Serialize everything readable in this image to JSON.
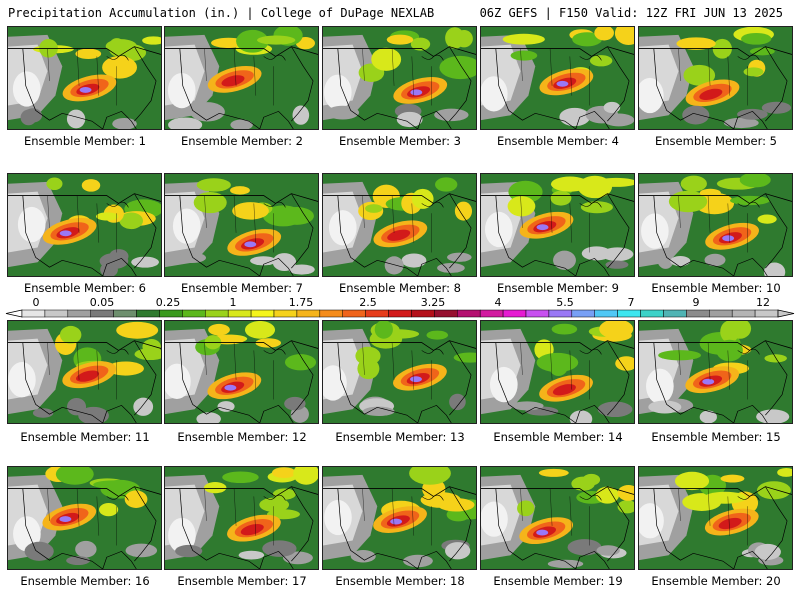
{
  "header": {
    "title": "Precipitation Accumulation (in.) | College of DuPage NEXLAB",
    "valid": "06Z GEFS | F150 Valid: 12Z FRI JUN 13 2025"
  },
  "caption_prefix": "Ensemble Member:",
  "members": [
    {
      "label": "Ensemble Member: 1"
    },
    {
      "label": "Ensemble Member: 2"
    },
    {
      "label": "Ensemble Member: 3"
    },
    {
      "label": "Ensemble Member: 4"
    },
    {
      "label": "Ensemble Member: 5"
    },
    {
      "label": "Ensemble Member: 6"
    },
    {
      "label": "Ensemble Member: 7"
    },
    {
      "label": "Ensemble Member: 8"
    },
    {
      "label": "Ensemble Member: 9"
    },
    {
      "label": "Ensemble Member: 10"
    },
    {
      "label": "Ensemble Member: 11"
    },
    {
      "label": "Ensemble Member: 12"
    },
    {
      "label": "Ensemble Member: 13"
    },
    {
      "label": "Ensemble Member: 14"
    },
    {
      "label": "Ensemble Member: 15"
    },
    {
      "label": "Ensemble Member: 16"
    },
    {
      "label": "Ensemble Member: 17"
    },
    {
      "label": "Ensemble Member: 18"
    },
    {
      "label": "Ensemble Member: 19"
    },
    {
      "label": "Ensemble Member: 20"
    }
  ],
  "colorbar": {
    "tick_labels": [
      "0",
      "0.05",
      "0.25",
      "1",
      "1.75",
      "2.5",
      "3.25",
      "4",
      "5.5",
      "7",
      "9",
      "12"
    ],
    "colors": [
      "#e6e6e6",
      "#c8c8c8",
      "#a0a0a0",
      "#7a7a7a",
      "#6e8f6e",
      "#2f7a2f",
      "#3a9a1e",
      "#5cb81c",
      "#9ad21a",
      "#d8e81a",
      "#f5f51a",
      "#f5d21a",
      "#f5b41a",
      "#f58c1a",
      "#f0641a",
      "#e63c1a",
      "#d21a1a",
      "#b4101a",
      "#961030",
      "#b41070",
      "#d21aa0",
      "#e61ad2",
      "#c850f0",
      "#9a78f5",
      "#78a0f5",
      "#50c8f5",
      "#3ce6f0",
      "#3cd2c8",
      "#50b4b4",
      "#8c8c8c",
      "#a0a0a0",
      "#b4b4b4",
      "#c8c8c8"
    ]
  }
}
